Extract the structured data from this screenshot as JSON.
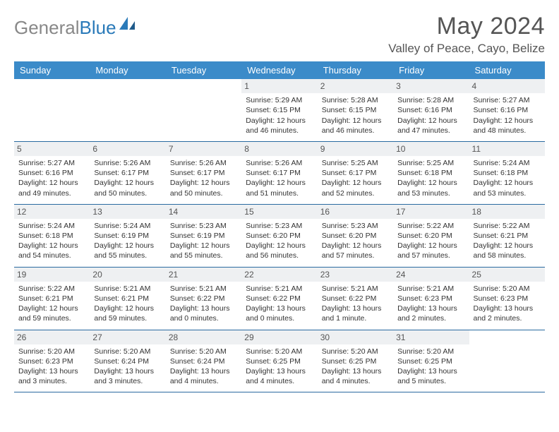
{
  "logo": {
    "part1": "General",
    "part2": "Blue"
  },
  "title": "May 2024",
  "location": "Valley of Peace, Cayo, Belize",
  "colors": {
    "header_bg": "#3b8bc9",
    "header_text": "#ffffff",
    "week_border": "#2a6aa0",
    "daynum_bg": "#eef0f2",
    "text": "#333333",
    "logo_blue": "#2a7ab9"
  },
  "day_names": [
    "Sunday",
    "Monday",
    "Tuesday",
    "Wednesday",
    "Thursday",
    "Friday",
    "Saturday"
  ],
  "weeks": [
    [
      {
        "n": "",
        "sr": "",
        "ss": "",
        "dl": ""
      },
      {
        "n": "",
        "sr": "",
        "ss": "",
        "dl": ""
      },
      {
        "n": "",
        "sr": "",
        "ss": "",
        "dl": ""
      },
      {
        "n": "1",
        "sr": "Sunrise: 5:29 AM",
        "ss": "Sunset: 6:15 PM",
        "dl": "Daylight: 12 hours and 46 minutes."
      },
      {
        "n": "2",
        "sr": "Sunrise: 5:28 AM",
        "ss": "Sunset: 6:15 PM",
        "dl": "Daylight: 12 hours and 46 minutes."
      },
      {
        "n": "3",
        "sr": "Sunrise: 5:28 AM",
        "ss": "Sunset: 6:16 PM",
        "dl": "Daylight: 12 hours and 47 minutes."
      },
      {
        "n": "4",
        "sr": "Sunrise: 5:27 AM",
        "ss": "Sunset: 6:16 PM",
        "dl": "Daylight: 12 hours and 48 minutes."
      }
    ],
    [
      {
        "n": "5",
        "sr": "Sunrise: 5:27 AM",
        "ss": "Sunset: 6:16 PM",
        "dl": "Daylight: 12 hours and 49 minutes."
      },
      {
        "n": "6",
        "sr": "Sunrise: 5:26 AM",
        "ss": "Sunset: 6:17 PM",
        "dl": "Daylight: 12 hours and 50 minutes."
      },
      {
        "n": "7",
        "sr": "Sunrise: 5:26 AM",
        "ss": "Sunset: 6:17 PM",
        "dl": "Daylight: 12 hours and 50 minutes."
      },
      {
        "n": "8",
        "sr": "Sunrise: 5:26 AM",
        "ss": "Sunset: 6:17 PM",
        "dl": "Daylight: 12 hours and 51 minutes."
      },
      {
        "n": "9",
        "sr": "Sunrise: 5:25 AM",
        "ss": "Sunset: 6:17 PM",
        "dl": "Daylight: 12 hours and 52 minutes."
      },
      {
        "n": "10",
        "sr": "Sunrise: 5:25 AM",
        "ss": "Sunset: 6:18 PM",
        "dl": "Daylight: 12 hours and 53 minutes."
      },
      {
        "n": "11",
        "sr": "Sunrise: 5:24 AM",
        "ss": "Sunset: 6:18 PM",
        "dl": "Daylight: 12 hours and 53 minutes."
      }
    ],
    [
      {
        "n": "12",
        "sr": "Sunrise: 5:24 AM",
        "ss": "Sunset: 6:18 PM",
        "dl": "Daylight: 12 hours and 54 minutes."
      },
      {
        "n": "13",
        "sr": "Sunrise: 5:24 AM",
        "ss": "Sunset: 6:19 PM",
        "dl": "Daylight: 12 hours and 55 minutes."
      },
      {
        "n": "14",
        "sr": "Sunrise: 5:23 AM",
        "ss": "Sunset: 6:19 PM",
        "dl": "Daylight: 12 hours and 55 minutes."
      },
      {
        "n": "15",
        "sr": "Sunrise: 5:23 AM",
        "ss": "Sunset: 6:20 PM",
        "dl": "Daylight: 12 hours and 56 minutes."
      },
      {
        "n": "16",
        "sr": "Sunrise: 5:23 AM",
        "ss": "Sunset: 6:20 PM",
        "dl": "Daylight: 12 hours and 57 minutes."
      },
      {
        "n": "17",
        "sr": "Sunrise: 5:22 AM",
        "ss": "Sunset: 6:20 PM",
        "dl": "Daylight: 12 hours and 57 minutes."
      },
      {
        "n": "18",
        "sr": "Sunrise: 5:22 AM",
        "ss": "Sunset: 6:21 PM",
        "dl": "Daylight: 12 hours and 58 minutes."
      }
    ],
    [
      {
        "n": "19",
        "sr": "Sunrise: 5:22 AM",
        "ss": "Sunset: 6:21 PM",
        "dl": "Daylight: 12 hours and 59 minutes."
      },
      {
        "n": "20",
        "sr": "Sunrise: 5:21 AM",
        "ss": "Sunset: 6:21 PM",
        "dl": "Daylight: 12 hours and 59 minutes."
      },
      {
        "n": "21",
        "sr": "Sunrise: 5:21 AM",
        "ss": "Sunset: 6:22 PM",
        "dl": "Daylight: 13 hours and 0 minutes."
      },
      {
        "n": "22",
        "sr": "Sunrise: 5:21 AM",
        "ss": "Sunset: 6:22 PM",
        "dl": "Daylight: 13 hours and 0 minutes."
      },
      {
        "n": "23",
        "sr": "Sunrise: 5:21 AM",
        "ss": "Sunset: 6:22 PM",
        "dl": "Daylight: 13 hours and 1 minute."
      },
      {
        "n": "24",
        "sr": "Sunrise: 5:21 AM",
        "ss": "Sunset: 6:23 PM",
        "dl": "Daylight: 13 hours and 2 minutes."
      },
      {
        "n": "25",
        "sr": "Sunrise: 5:20 AM",
        "ss": "Sunset: 6:23 PM",
        "dl": "Daylight: 13 hours and 2 minutes."
      }
    ],
    [
      {
        "n": "26",
        "sr": "Sunrise: 5:20 AM",
        "ss": "Sunset: 6:23 PM",
        "dl": "Daylight: 13 hours and 3 minutes."
      },
      {
        "n": "27",
        "sr": "Sunrise: 5:20 AM",
        "ss": "Sunset: 6:24 PM",
        "dl": "Daylight: 13 hours and 3 minutes."
      },
      {
        "n": "28",
        "sr": "Sunrise: 5:20 AM",
        "ss": "Sunset: 6:24 PM",
        "dl": "Daylight: 13 hours and 4 minutes."
      },
      {
        "n": "29",
        "sr": "Sunrise: 5:20 AM",
        "ss": "Sunset: 6:25 PM",
        "dl": "Daylight: 13 hours and 4 minutes."
      },
      {
        "n": "30",
        "sr": "Sunrise: 5:20 AM",
        "ss": "Sunset: 6:25 PM",
        "dl": "Daylight: 13 hours and 4 minutes."
      },
      {
        "n": "31",
        "sr": "Sunrise: 5:20 AM",
        "ss": "Sunset: 6:25 PM",
        "dl": "Daylight: 13 hours and 5 minutes."
      },
      {
        "n": "",
        "sr": "",
        "ss": "",
        "dl": ""
      }
    ]
  ]
}
